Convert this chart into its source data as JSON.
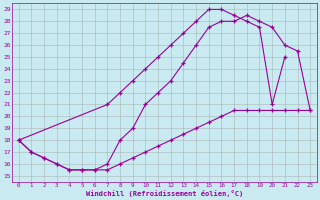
{
  "xlabel": "Windchill (Refroidissement éolien,°C)",
  "bg_color": "#c8eaf0",
  "line_color": "#990099",
  "grid_color": "#a0a0a0",
  "xlim": [
    -0.5,
    23.5
  ],
  "ylim": [
    14.5,
    29.5
  ],
  "xticks": [
    0,
    1,
    2,
    3,
    4,
    5,
    6,
    7,
    8,
    9,
    10,
    11,
    12,
    13,
    14,
    15,
    16,
    17,
    18,
    19,
    20,
    21,
    22,
    23
  ],
  "yticks": [
    15,
    16,
    17,
    18,
    19,
    20,
    21,
    22,
    23,
    24,
    25,
    26,
    27,
    28,
    29
  ],
  "line1_x": [
    0,
    1,
    2,
    3,
    4,
    5,
    6,
    7,
    8,
    9,
    10,
    11,
    12,
    13,
    14,
    15,
    16,
    17,
    18,
    19,
    20,
    21,
    22,
    23
  ],
  "line1_y": [
    18,
    17,
    16.5,
    16,
    15.5,
    15.5,
    15.5,
    16,
    18,
    19,
    21,
    22,
    23,
    24.5,
    26,
    27.5,
    28,
    28,
    28.5,
    28,
    27.5,
    26,
    25.5,
    20.5
  ],
  "line2_x": [
    0,
    7,
    8,
    9,
    10,
    11,
    12,
    13,
    14,
    15,
    16,
    17,
    18,
    19,
    20,
    21
  ],
  "line2_y": [
    18,
    21,
    22,
    23,
    24,
    25,
    26,
    27,
    28,
    29,
    29,
    28.5,
    28,
    27.5,
    21,
    25
  ],
  "line3_x": [
    0,
    1,
    2,
    3,
    4,
    5,
    6,
    7,
    8,
    9,
    10,
    11,
    12,
    13,
    14,
    15,
    16,
    17,
    18,
    19,
    20,
    21,
    22,
    23
  ],
  "line3_y": [
    18,
    17,
    16.5,
    16,
    15.5,
    15.5,
    15.5,
    15.5,
    16,
    16.5,
    17,
    17.5,
    18,
    18.5,
    19,
    19.5,
    20,
    20.5,
    20.5,
    20.5,
    20.5,
    20.5,
    20.5,
    20.5
  ]
}
